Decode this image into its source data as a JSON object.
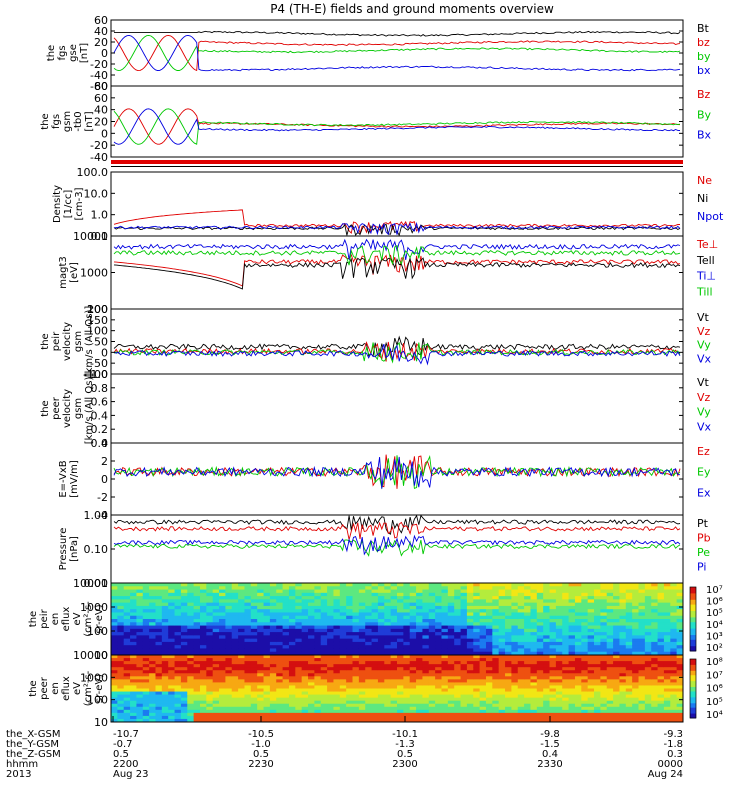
{
  "title": "P4 (TH-E) fields and ground moments overview",
  "colors": {
    "black": "#000000",
    "red": "#e00000",
    "green": "#00c800",
    "blue": "#0000e0",
    "lightgreen": "#33dd33"
  },
  "chart_data": [
    {
      "type": "line",
      "panel": "fgs-gse",
      "ylabel": [
        "the",
        "fgs",
        "gse",
        "[nT]"
      ],
      "ylim": [
        -60,
        60
      ],
      "yticks": [
        "60",
        "40",
        "20",
        "0",
        "-20",
        "-40",
        "-60"
      ],
      "series": [
        {
          "name": "Bt",
          "color": "black",
          "level": 35
        },
        {
          "name": "bz",
          "color": "red",
          "level": 18
        },
        {
          "name": "by",
          "color": "green",
          "level": 5
        },
        {
          "name": "bx",
          "color": "blue",
          "level": -28
        }
      ]
    },
    {
      "type": "line",
      "panel": "fgs-gsm-tb0",
      "ylabel": [
        "the",
        "fgs",
        "gsm",
        "-tb0",
        "[nT]"
      ],
      "ylim": [
        -60,
        80
      ],
      "yticks": [
        "80",
        "60",
        "40",
        "20",
        "0",
        "-20",
        "-40"
      ],
      "series": [
        {
          "name": "Bz",
          "color": "red",
          "level": 3
        },
        {
          "name": "By",
          "color": "green",
          "level": 6
        },
        {
          "name": "Bx",
          "color": "blue",
          "level": -4
        }
      ]
    },
    {
      "type": "line",
      "panel": "density",
      "ylabel": [
        "Density",
        "[1/cc]",
        "[cm-3]"
      ],
      "scale": "log",
      "ylim": [
        0.1,
        200
      ],
      "yticks": [
        "100.0",
        "10.0",
        "1.0",
        "0.1"
      ],
      "series": [
        {
          "name": "Ne",
          "color": "red",
          "level": 0.35
        },
        {
          "name": "Ni",
          "color": "black",
          "level": 0.25
        },
        {
          "name": "Npot",
          "color": "blue",
          "level": 0.28
        }
      ]
    },
    {
      "type": "line",
      "panel": "temperature",
      "ylabel": [
        "magt3",
        "[eV]"
      ],
      "scale": "log",
      "ylim": [
        100,
        12000
      ],
      "yticks": [
        "10000",
        "1000",
        "100"
      ],
      "series": [
        {
          "name": "Te⊥",
          "color": "red",
          "level": 2200
        },
        {
          "name": "Tell",
          "color": "black",
          "level": 1800
        },
        {
          "name": "Ti⊥",
          "color": "blue",
          "level": 6000
        },
        {
          "name": "Till",
          "color": "green",
          "level": 4000
        }
      ]
    },
    {
      "type": "line",
      "panel": "velocity",
      "ylabel": [
        "the",
        "peir",
        "velocity",
        "gsm",
        "[km/s (All Qs)]"
      ],
      "ylim": [
        -100,
        200
      ],
      "yticks": [
        "200",
        "150",
        "100",
        "50",
        "0",
        "-50",
        "-100"
      ],
      "series": [
        {
          "name": "Vt",
          "color": "black",
          "level": 25
        },
        {
          "name": "Vz",
          "color": "red",
          "level": 5
        },
        {
          "name": "Vy",
          "color": "green",
          "level": 0
        },
        {
          "name": "Vx",
          "color": "blue",
          "level": -5
        }
      ]
    },
    {
      "type": "line",
      "panel": "peer-velocity",
      "ylabel": [
        "the",
        "peer",
        "velocity",
        "gsm",
        "[km/s (All Qs)]"
      ],
      "ylim": [
        0,
        1
      ],
      "yticks": [
        "1.0",
        "0.8",
        "0.6",
        "0.4",
        "0.2",
        "0.0"
      ],
      "series": [
        {
          "name": "Vt",
          "color": "black"
        },
        {
          "name": "Vz",
          "color": "red"
        },
        {
          "name": "Vy",
          "color": "green"
        },
        {
          "name": "Vx",
          "color": "blue"
        }
      ]
    },
    {
      "type": "line",
      "panel": "efield",
      "ylabel": [
        "E=-VxB",
        "[mV/m]"
      ],
      "ylim": [
        -6,
        4
      ],
      "yticks": [
        "4",
        "2",
        "0",
        "-2",
        "-4"
      ],
      "series": [
        {
          "name": "Ez",
          "color": "red",
          "level": 0
        },
        {
          "name": "Ey",
          "color": "green",
          "level": 0
        },
        {
          "name": "Ex",
          "color": "blue",
          "level": 0
        }
      ]
    },
    {
      "type": "line",
      "panel": "pressure",
      "ylabel": [
        "Pressure",
        "[nPa]"
      ],
      "scale": "log",
      "ylim": [
        0.01,
        1.5
      ],
      "yticks": [
        "1.00",
        "0.10",
        "0.01"
      ],
      "series": [
        {
          "name": "Pt",
          "color": "black",
          "level": 0.9
        },
        {
          "name": "Pb",
          "color": "red",
          "level": 0.55
        },
        {
          "name": "Pe",
          "color": "green",
          "level": 0.15
        },
        {
          "name": "Pi",
          "color": "blue",
          "level": 0.2
        }
      ]
    },
    {
      "type": "heatmap",
      "panel": "peir-spectrogram",
      "ylabel": [
        "the",
        "peir",
        "en",
        "eflux",
        "eV",
        "(cm²-s-",
        "sr-eV)"
      ],
      "scale": "log",
      "ylim": [
        7,
        15000
      ],
      "yticks": [
        "10000",
        "1000",
        "100",
        "10"
      ],
      "colorbar_ticks": [
        "10⁷",
        "10⁶",
        "10⁵",
        "10⁴",
        "10³",
        "10²"
      ]
    },
    {
      "type": "heatmap",
      "panel": "peer-spectrogram",
      "ylabel": [
        "the",
        "peer",
        "en",
        "eflux",
        "eV",
        "(cm²-s-",
        "sr-eV)"
      ],
      "scale": "log",
      "ylim": [
        7,
        15000
      ],
      "yticks": [
        "10000",
        "1000",
        "100",
        "10"
      ],
      "colorbar_ticks": [
        "10⁸",
        "10⁷",
        "10⁶",
        "10⁵",
        "10⁴"
      ]
    }
  ],
  "time_axis": {
    "row_labels": [
      "the_X-GSM",
      "the_Y-GSM",
      "the_Z-GSM",
      "hhmm",
      "2013"
    ],
    "ticks": [
      {
        "x_gsm": "-10.7",
        "y_gsm": "-0.7",
        "z_gsm": "0.5",
        "hhmm": "2200",
        "date": "Aug 23"
      },
      {
        "x_gsm": "-10.5",
        "y_gsm": "-1.0",
        "z_gsm": "0.5",
        "hhmm": "2230",
        "date": ""
      },
      {
        "x_gsm": "-10.1",
        "y_gsm": "-1.3",
        "z_gsm": "0.5",
        "hhmm": "2300",
        "date": ""
      },
      {
        "x_gsm": "-9.8",
        "y_gsm": "-1.5",
        "z_gsm": "0.4",
        "hhmm": "2330",
        "date": ""
      },
      {
        "x_gsm": "-9.3",
        "y_gsm": "-1.8",
        "z_gsm": "0.3",
        "hhmm": "0000",
        "date": "Aug 24"
      }
    ]
  }
}
